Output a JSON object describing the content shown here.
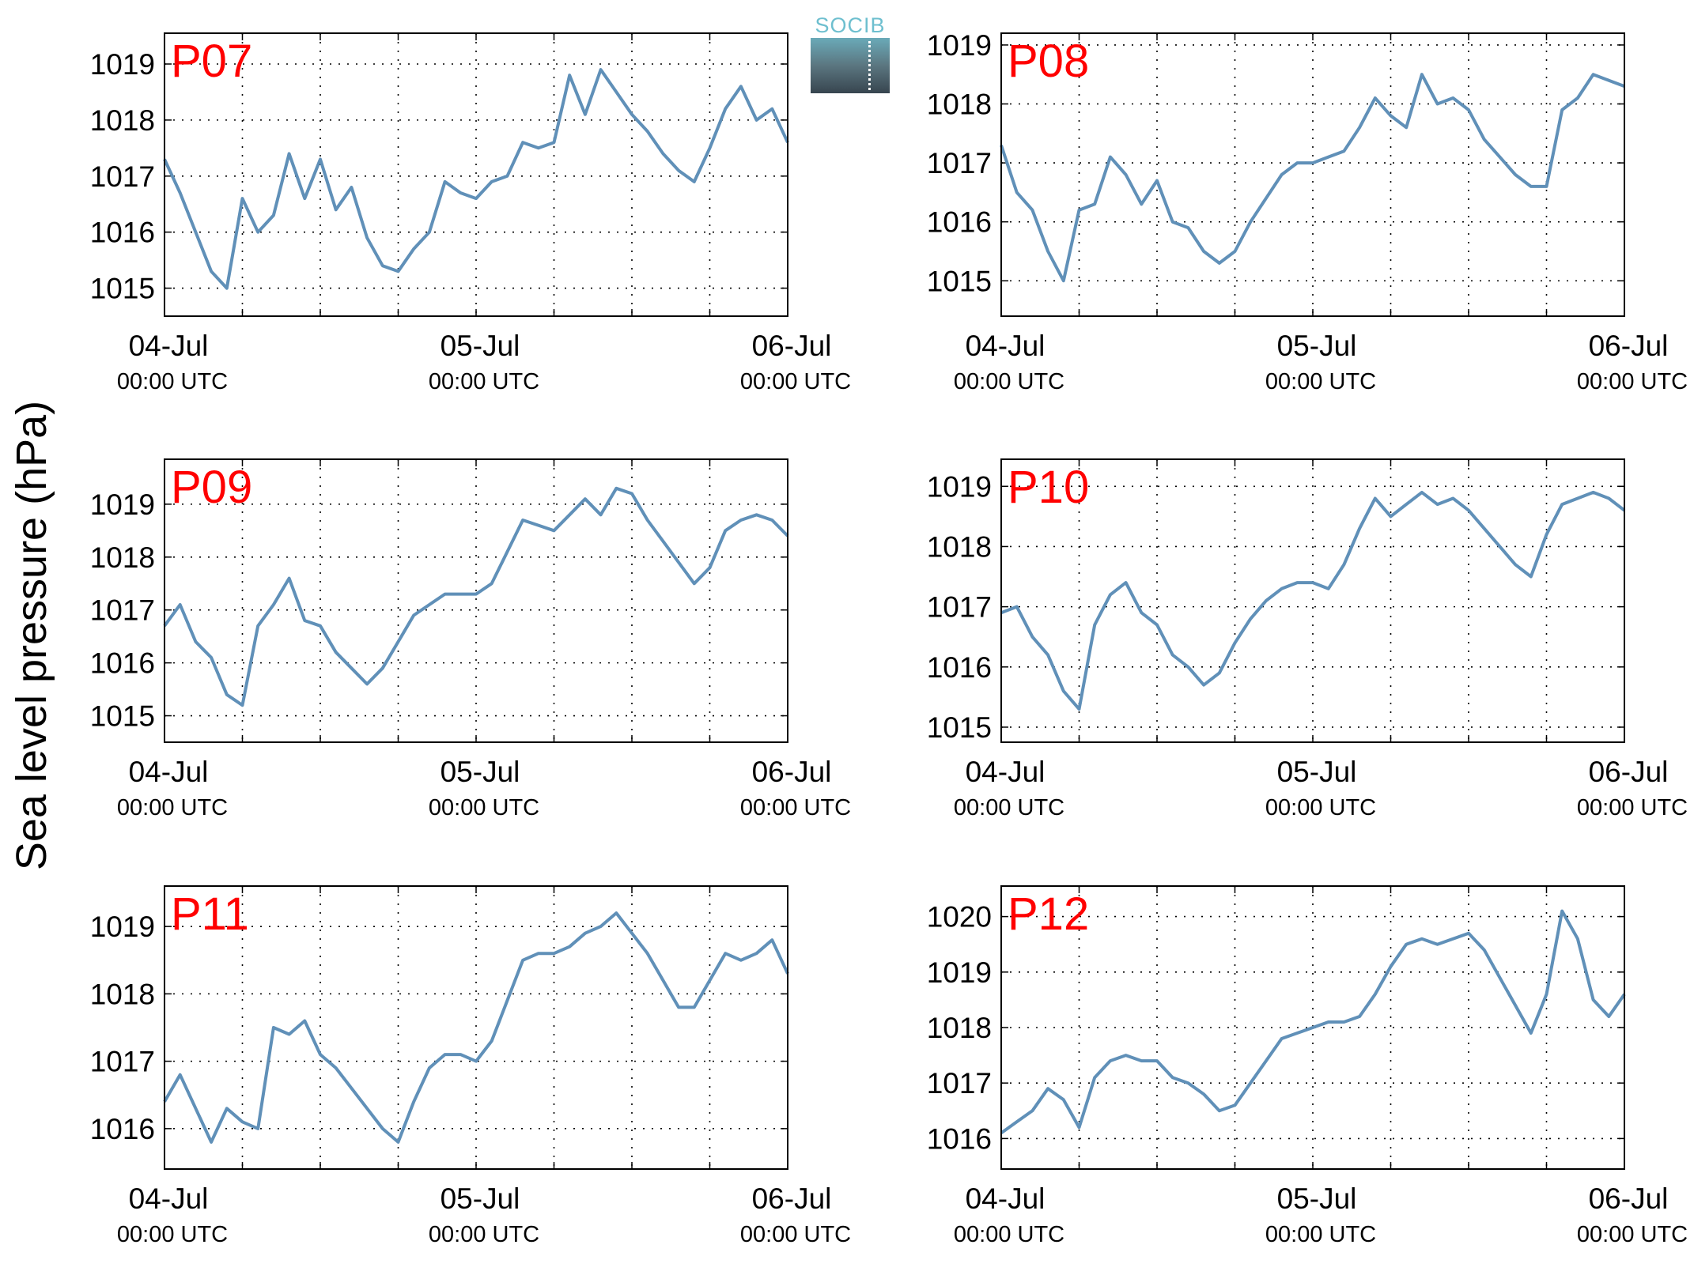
{
  "ylabel": "Sea level pressure (hPa)",
  "logo": {
    "text": "SOCIB"
  },
  "colors": {
    "line": "#6090b8",
    "panel_label": "#ff0000",
    "grid": "#000000"
  },
  "chart_data": [
    {
      "type": "line",
      "label": "P07",
      "x_ticks": [
        {
          "date": "04-Jul",
          "time": "00:00 UTC"
        },
        {
          "date": "05-Jul",
          "time": "00:00 UTC"
        },
        {
          "date": "06-Jul",
          "time": "00:00 UTC"
        }
      ],
      "x_unit": "days since 04-Jul 00:00 UTC",
      "xlim": [
        0,
        2
      ],
      "minor_tick_step_hours": 6,
      "ylim": [
        1014.5,
        1019.55
      ],
      "yticks": [
        1015,
        1016,
        1017,
        1018,
        1019
      ],
      "grid": true,
      "x": [
        0,
        0.05,
        0.1,
        0.15,
        0.2,
        0.25,
        0.3,
        0.35,
        0.4,
        0.45,
        0.5,
        0.55,
        0.6,
        0.65,
        0.7,
        0.75,
        0.8,
        0.85,
        0.9,
        0.95,
        1.0,
        1.05,
        1.1,
        1.15,
        1.2,
        1.25,
        1.3,
        1.35,
        1.4,
        1.45,
        1.5,
        1.55,
        1.6,
        1.65,
        1.7,
        1.75,
        1.8,
        1.85,
        1.9,
        1.95,
        2.0
      ],
      "y": [
        1017.3,
        1016.7,
        1016.0,
        1015.3,
        1015.0,
        1016.6,
        1016.0,
        1016.3,
        1017.4,
        1016.6,
        1017.3,
        1016.4,
        1016.8,
        1015.9,
        1015.4,
        1015.3,
        1015.7,
        1016.0,
        1016.9,
        1016.7,
        1016.6,
        1016.9,
        1017.0,
        1017.6,
        1017.5,
        1017.6,
        1018.8,
        1018.1,
        1018.9,
        1018.5,
        1018.1,
        1017.8,
        1017.4,
        1017.1,
        1016.9,
        1017.5,
        1018.2,
        1018.6,
        1018.0,
        1018.2,
        1017.6
      ]
    },
    {
      "type": "line",
      "label": "P08",
      "x_ticks": [
        {
          "date": "04-Jul",
          "time": "00:00 UTC"
        },
        {
          "date": "05-Jul",
          "time": "00:00 UTC"
        },
        {
          "date": "06-Jul",
          "time": "00:00 UTC"
        }
      ],
      "x_unit": "days since 04-Jul 00:00 UTC",
      "xlim": [
        0,
        2
      ],
      "minor_tick_step_hours": 6,
      "ylim": [
        1014.4,
        1019.2
      ],
      "yticks": [
        1015,
        1016,
        1017,
        1018,
        1019
      ],
      "grid": true,
      "x": [
        0,
        0.05,
        0.1,
        0.15,
        0.2,
        0.25,
        0.3,
        0.35,
        0.4,
        0.45,
        0.5,
        0.55,
        0.6,
        0.65,
        0.7,
        0.75,
        0.8,
        0.85,
        0.9,
        0.95,
        1.0,
        1.05,
        1.1,
        1.15,
        1.2,
        1.25,
        1.3,
        1.35,
        1.4,
        1.45,
        1.5,
        1.55,
        1.6,
        1.65,
        1.7,
        1.75,
        1.8,
        1.85,
        1.9,
        1.95,
        2.0
      ],
      "y": [
        1017.3,
        1016.5,
        1016.2,
        1015.5,
        1015.0,
        1016.2,
        1016.3,
        1017.1,
        1016.8,
        1016.3,
        1016.7,
        1016.0,
        1015.9,
        1015.5,
        1015.3,
        1015.5,
        1016.0,
        1016.4,
        1016.8,
        1017.0,
        1017.0,
        1017.1,
        1017.2,
        1017.6,
        1018.1,
        1017.8,
        1017.6,
        1018.5,
        1018.0,
        1018.1,
        1017.9,
        1017.4,
        1017.1,
        1016.8,
        1016.6,
        1016.6,
        1017.9,
        1018.1,
        1018.5,
        1018.4,
        1018.3
      ]
    },
    {
      "type": "line",
      "label": "P09",
      "x_ticks": [
        {
          "date": "04-Jul",
          "time": "00:00 UTC"
        },
        {
          "date": "05-Jul",
          "time": "00:00 UTC"
        },
        {
          "date": "06-Jul",
          "time": "00:00 UTC"
        }
      ],
      "x_unit": "days since 04-Jul 00:00 UTC",
      "xlim": [
        0,
        2
      ],
      "minor_tick_step_hours": 6,
      "ylim": [
        1014.5,
        1019.85
      ],
      "yticks": [
        1015,
        1016,
        1017,
        1018,
        1019
      ],
      "grid": true,
      "x": [
        0,
        0.05,
        0.1,
        0.15,
        0.2,
        0.25,
        0.3,
        0.35,
        0.4,
        0.45,
        0.5,
        0.55,
        0.6,
        0.65,
        0.7,
        0.75,
        0.8,
        0.85,
        0.9,
        0.95,
        1.0,
        1.05,
        1.1,
        1.15,
        1.2,
        1.25,
        1.3,
        1.35,
        1.4,
        1.45,
        1.5,
        1.55,
        1.6,
        1.65,
        1.7,
        1.75,
        1.8,
        1.85,
        1.9,
        1.95,
        2.0
      ],
      "y": [
        1016.7,
        1017.1,
        1016.4,
        1016.1,
        1015.4,
        1015.2,
        1016.7,
        1017.1,
        1017.6,
        1016.8,
        1016.7,
        1016.2,
        1015.9,
        1015.6,
        1015.9,
        1016.4,
        1016.9,
        1017.1,
        1017.3,
        1017.3,
        1017.3,
        1017.5,
        1018.1,
        1018.7,
        1018.6,
        1018.5,
        1018.8,
        1019.1,
        1018.8,
        1019.3,
        1019.2,
        1018.7,
        1018.3,
        1017.9,
        1017.5,
        1017.8,
        1018.5,
        1018.7,
        1018.8,
        1018.7,
        1018.4
      ]
    },
    {
      "type": "line",
      "label": "P10",
      "x_ticks": [
        {
          "date": "04-Jul",
          "time": "00:00 UTC"
        },
        {
          "date": "05-Jul",
          "time": "00:00 UTC"
        },
        {
          "date": "06-Jul",
          "time": "00:00 UTC"
        }
      ],
      "x_unit": "days since 04-Jul 00:00 UTC",
      "xlim": [
        0,
        2
      ],
      "minor_tick_step_hours": 6,
      "ylim": [
        1014.75,
        1019.45
      ],
      "yticks": [
        1015,
        1016,
        1017,
        1018,
        1019
      ],
      "grid": true,
      "x": [
        0,
        0.05,
        0.1,
        0.15,
        0.2,
        0.25,
        0.3,
        0.35,
        0.4,
        0.45,
        0.5,
        0.55,
        0.6,
        0.65,
        0.7,
        0.75,
        0.8,
        0.85,
        0.9,
        0.95,
        1.0,
        1.05,
        1.1,
        1.15,
        1.2,
        1.25,
        1.3,
        1.35,
        1.4,
        1.45,
        1.5,
        1.55,
        1.6,
        1.65,
        1.7,
        1.75,
        1.8,
        1.85,
        1.9,
        1.95,
        2.0
      ],
      "y": [
        1016.9,
        1017.0,
        1016.5,
        1016.2,
        1015.6,
        1015.3,
        1016.7,
        1017.2,
        1017.4,
        1016.9,
        1016.7,
        1016.2,
        1016.0,
        1015.7,
        1015.9,
        1016.4,
        1016.8,
        1017.1,
        1017.3,
        1017.4,
        1017.4,
        1017.3,
        1017.7,
        1018.3,
        1018.8,
        1018.5,
        1018.7,
        1018.9,
        1018.7,
        1018.8,
        1018.6,
        1018.3,
        1018.0,
        1017.7,
        1017.5,
        1018.2,
        1018.7,
        1018.8,
        1018.9,
        1018.8,
        1018.6
      ]
    },
    {
      "type": "line",
      "label": "P11",
      "x_ticks": [
        {
          "date": "04-Jul",
          "time": "00:00 UTC"
        },
        {
          "date": "05-Jul",
          "time": "00:00 UTC"
        },
        {
          "date": "06-Jul",
          "time": "00:00 UTC"
        }
      ],
      "x_unit": "days since 04-Jul 00:00 UTC",
      "xlim": [
        0,
        2
      ],
      "minor_tick_step_hours": 6,
      "ylim": [
        1015.4,
        1019.6
      ],
      "yticks": [
        1016,
        1017,
        1018,
        1019
      ],
      "grid": true,
      "x": [
        0,
        0.05,
        0.1,
        0.15,
        0.2,
        0.25,
        0.3,
        0.35,
        0.4,
        0.45,
        0.5,
        0.55,
        0.6,
        0.65,
        0.7,
        0.75,
        0.8,
        0.85,
        0.9,
        0.95,
        1.0,
        1.05,
        1.1,
        1.15,
        1.2,
        1.25,
        1.3,
        1.35,
        1.4,
        1.45,
        1.5,
        1.55,
        1.6,
        1.65,
        1.7,
        1.75,
        1.8,
        1.85,
        1.9,
        1.95,
        2.0
      ],
      "y": [
        1016.4,
        1016.8,
        1016.3,
        1015.8,
        1016.3,
        1016.1,
        1016.0,
        1017.5,
        1017.4,
        1017.6,
        1017.1,
        1016.9,
        1016.6,
        1016.3,
        1016.0,
        1015.8,
        1016.4,
        1016.9,
        1017.1,
        1017.1,
        1017.0,
        1017.3,
        1017.9,
        1018.5,
        1018.6,
        1018.6,
        1018.7,
        1018.9,
        1019.0,
        1019.2,
        1018.9,
        1018.6,
        1018.2,
        1017.8,
        1017.8,
        1018.2,
        1018.6,
        1018.5,
        1018.6,
        1018.8,
        1018.3
      ]
    },
    {
      "type": "line",
      "label": "P12",
      "x_ticks": [
        {
          "date": "04-Jul",
          "time": "00:00 UTC"
        },
        {
          "date": "05-Jul",
          "time": "00:00 UTC"
        },
        {
          "date": "06-Jul",
          "time": "00:00 UTC"
        }
      ],
      "x_unit": "days since 04-Jul 00:00 UTC",
      "xlim": [
        0,
        2
      ],
      "minor_tick_step_hours": 6,
      "ylim": [
        1015.45,
        1020.55
      ],
      "yticks": [
        1016,
        1017,
        1018,
        1019,
        1020
      ],
      "grid": true,
      "x": [
        0,
        0.05,
        0.1,
        0.15,
        0.2,
        0.25,
        0.3,
        0.35,
        0.4,
        0.45,
        0.5,
        0.55,
        0.6,
        0.65,
        0.7,
        0.75,
        0.8,
        0.85,
        0.9,
        0.95,
        1.0,
        1.05,
        1.1,
        1.15,
        1.2,
        1.25,
        1.3,
        1.35,
        1.4,
        1.45,
        1.5,
        1.55,
        1.6,
        1.65,
        1.7,
        1.75,
        1.8,
        1.85,
        1.9,
        1.95,
        2.0
      ],
      "y": [
        1016.1,
        1016.3,
        1016.5,
        1016.9,
        1016.7,
        1016.2,
        1017.1,
        1017.4,
        1017.5,
        1017.4,
        1017.4,
        1017.1,
        1017.0,
        1016.8,
        1016.5,
        1016.6,
        1017.0,
        1017.4,
        1017.8,
        1017.9,
        1018.0,
        1018.1,
        1018.1,
        1018.2,
        1018.6,
        1019.1,
        1019.5,
        1019.6,
        1019.5,
        1019.6,
        1019.7,
        1019.4,
        1018.9,
        1018.4,
        1017.9,
        1018.6,
        1020.1,
        1019.6,
        1018.5,
        1018.2,
        1018.6
      ]
    }
  ]
}
